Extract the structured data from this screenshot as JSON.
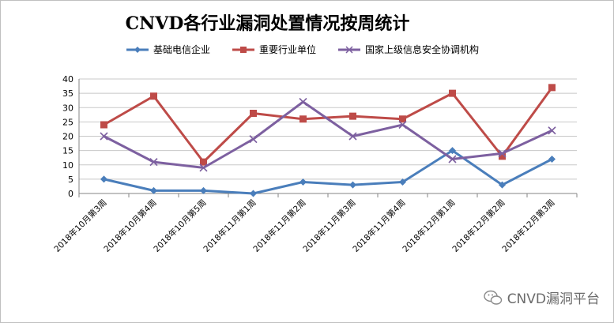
{
  "chart_data": {
    "type": "line",
    "title": "CNVD各行业漏洞处置情况按周统计",
    "categories": [
      "2018年10月第3周",
      "2018年10月第4周",
      "2018年10月第5周",
      "2018年11月第1周",
      "2018年11月第2周",
      "2018年11月第3周",
      "2018年11月第4周",
      "2018年12月第1周",
      "2018年12月第2周",
      "2018年12月第3周"
    ],
    "yticks": [
      "0",
      "5",
      "10",
      "15",
      "20",
      "25",
      "30",
      "35",
      "40"
    ],
    "ylim": [
      0,
      40
    ],
    "grid": true,
    "legend_position": "top",
    "series": [
      {
        "name": "基础电信企业",
        "color": "#4a7ebb",
        "marker": "diamond",
        "values": [
          5,
          1,
          1,
          0,
          4,
          3,
          4,
          15,
          3,
          12
        ]
      },
      {
        "name": "重要行业单位",
        "color": "#be4b48",
        "marker": "square",
        "values": [
          24,
          34,
          11,
          28,
          26,
          27,
          26,
          35,
          13,
          37
        ]
      },
      {
        "name": "国家上级信息安全协调机构",
        "color": "#7d60a0",
        "marker": "x",
        "values": [
          20,
          11,
          9,
          19,
          32,
          20,
          24,
          12,
          14,
          22
        ]
      }
    ]
  },
  "watermark": {
    "text": "CNVD漏洞平台",
    "icon": "wechat-icon"
  }
}
